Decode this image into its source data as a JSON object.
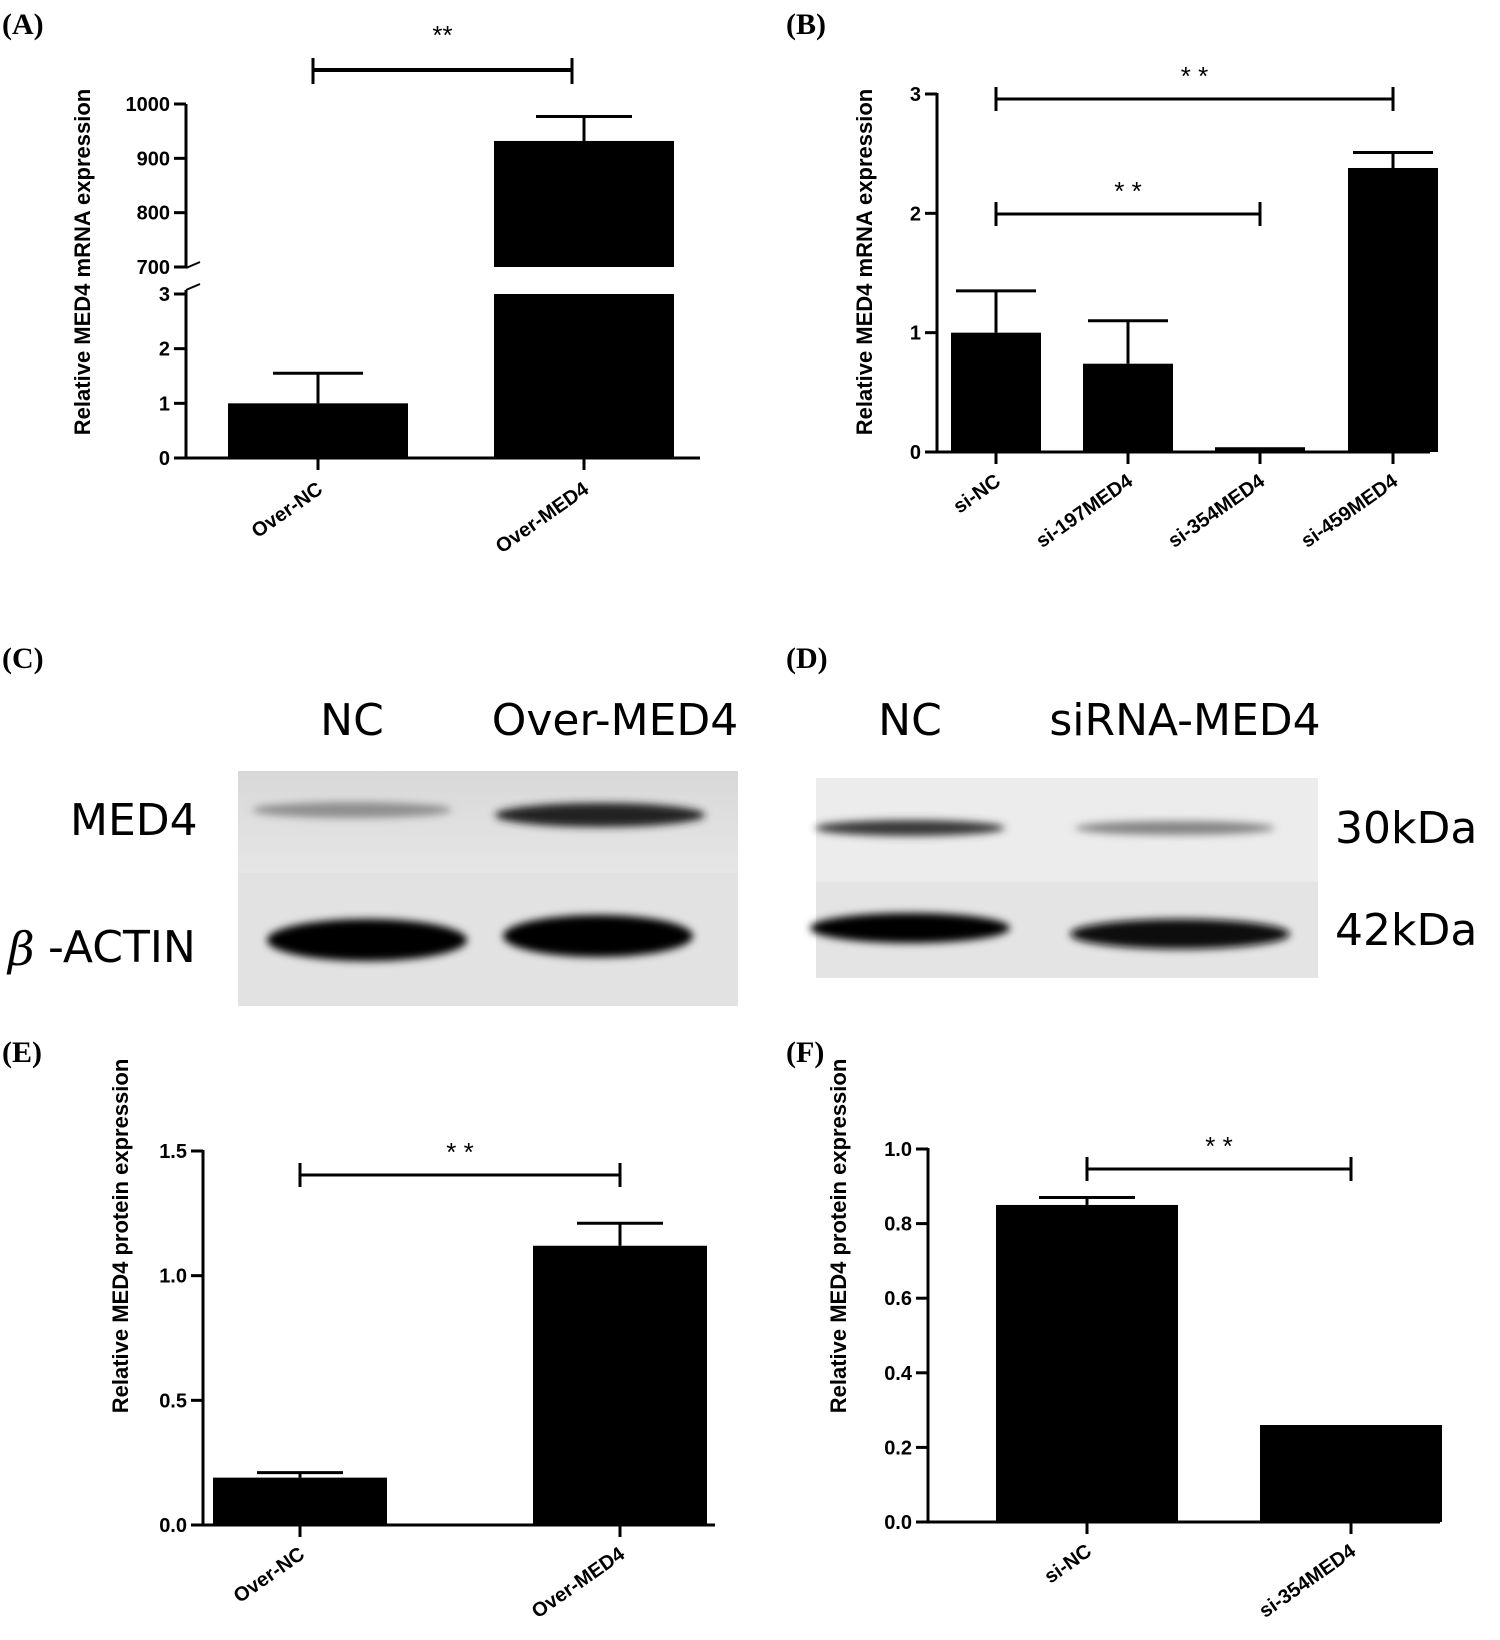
{
  "panels": {
    "A": "(A)",
    "B": "(B)",
    "C": "(C)",
    "D": "(D)",
    "E": "(E)",
    "F": "(F)"
  },
  "chart_data": [
    {
      "id": "A",
      "type": "bar",
      "ylabel": "Relative MED4 mRNA expression",
      "categories": [
        "Over-NC",
        "Over-MED4"
      ],
      "values": [
        1.0,
        932
      ],
      "errors": [
        0.55,
        45
      ],
      "broken_axis": {
        "lower": [
          0,
          3
        ],
        "upper": [
          700,
          1000
        ]
      },
      "lower_ticks": [
        "0",
        "1",
        "2",
        "3"
      ],
      "upper_ticks": [
        "700",
        "800",
        "900",
        "1000"
      ],
      "significance": [
        {
          "from": 0,
          "to": 1,
          "label": "**"
        }
      ]
    },
    {
      "id": "B",
      "type": "bar",
      "ylabel": "Relative MED4 mRNA expression",
      "categories": [
        "si-NC",
        "si-197MED4",
        "si-354MED4",
        "si-459MED4"
      ],
      "values": [
        1.0,
        0.74,
        0.04,
        2.38
      ],
      "errors": [
        0.35,
        0.36,
        0.0,
        0.13
      ],
      "ylim": [
        0,
        3
      ],
      "ticks": [
        "0",
        "1",
        "2",
        "3"
      ],
      "significance": [
        {
          "from": 0,
          "to": 2,
          "label": "* *"
        },
        {
          "from": 0,
          "to": 3,
          "label": "* *"
        }
      ]
    },
    {
      "id": "E",
      "type": "bar",
      "ylabel": "Relative MED4 protein expression",
      "categories": [
        "Over-NC",
        "Over-MED4"
      ],
      "values": [
        0.19,
        1.12
      ],
      "errors": [
        0.02,
        0.09
      ],
      "ylim": [
        0,
        1.5
      ],
      "ticks": [
        "0.0",
        "0.5",
        "1.0",
        "1.5"
      ],
      "significance": [
        {
          "from": 0,
          "to": 1,
          "label": "* *"
        }
      ]
    },
    {
      "id": "F",
      "type": "bar",
      "ylabel": "Relative MED4 protein expression",
      "categories": [
        "si-NC",
        "si-354MED4"
      ],
      "values": [
        0.85,
        0.26
      ],
      "errors": [
        0.02,
        0.0
      ],
      "ylim": [
        0,
        1.0
      ],
      "ticks": [
        "0.0",
        "0.2",
        "0.4",
        "0.6",
        "0.8",
        "1.0"
      ],
      "significance": [
        {
          "from": 0,
          "to": 1,
          "label": "* *"
        }
      ]
    }
  ],
  "blots": {
    "C": {
      "lanes": [
        "NC",
        "Over-MED4"
      ],
      "row_labels": [
        "MED4",
        "-ACTIN"
      ],
      "beta_symbol": "β",
      "band_intensity": {
        "MED4": [
          0.35,
          0.85
        ],
        "ACTIN": [
          1.0,
          1.0
        ]
      }
    },
    "D": {
      "lanes": [
        "NC",
        "siRNA-MED4"
      ],
      "size_labels": [
        "30kDa",
        "42kDa"
      ],
      "band_intensity": {
        "MED4": [
          0.75,
          0.4
        ],
        "ACTIN": [
          1.0,
          0.95
        ]
      }
    }
  }
}
